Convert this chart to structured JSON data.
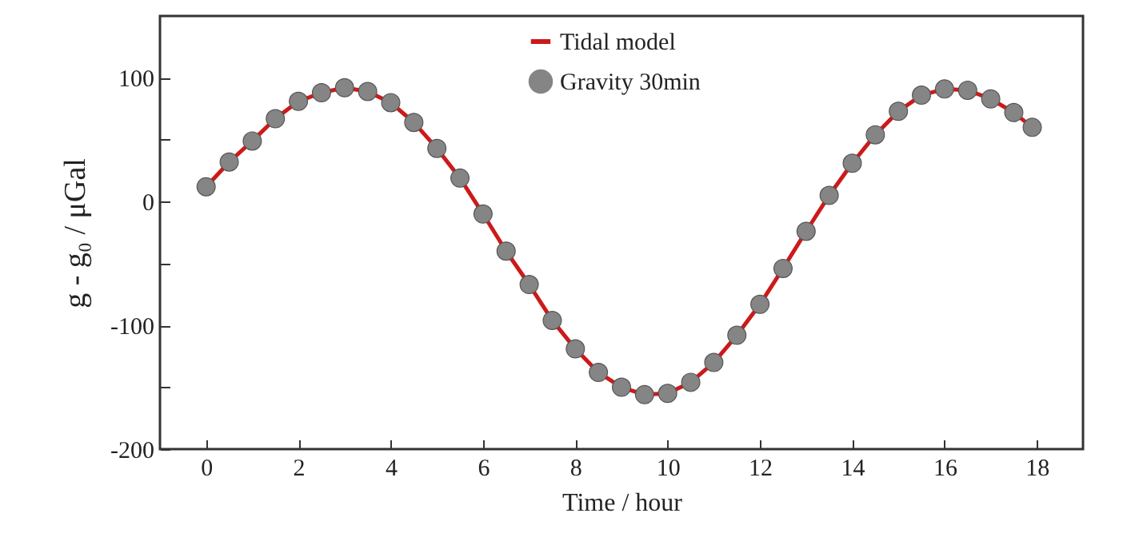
{
  "chart_data": {
    "type": "line",
    "xlabel": "Time / hour",
    "ylabel": "g - g₀  / μGal",
    "xlim": [
      -1,
      19
    ],
    "ylim": [
      -200,
      150
    ],
    "xticks": [
      0,
      2,
      4,
      6,
      8,
      10,
      12,
      14,
      16,
      18
    ],
    "yticks": [
      -200,
      {
        "value": -150,
        "label": null
      },
      -100,
      {
        "value": -50,
        "label": null
      },
      0,
      {
        "value": 50,
        "label": null
      },
      100
    ],
    "grid": false,
    "legend": "top",
    "series": [
      {
        "name": "Tidal model",
        "line_style": "solid",
        "color": "#cc1a1a",
        "x": [
          0,
          0.5,
          1,
          1.5,
          2,
          2.5,
          3,
          3.5,
          4,
          4.5,
          5,
          5.5,
          6,
          6.5,
          7,
          7.5,
          8,
          8.5,
          9,
          9.5,
          10,
          10.5,
          11,
          11.5,
          12,
          12.5,
          13,
          13.5,
          14,
          14.5,
          15,
          15.5,
          16,
          16.5,
          17,
          17.5,
          17.9
        ],
        "values": [
          12,
          32,
          49,
          67,
          81,
          88,
          92,
          89,
          80,
          64,
          43,
          19,
          -10,
          -40,
          -67,
          -96,
          -119,
          -138,
          -150,
          -156,
          -155,
          -146,
          -130,
          -108,
          -83,
          -54,
          -24,
          5,
          31,
          54,
          73,
          86,
          91,
          90,
          83,
          72,
          60
        ]
      },
      {
        "name": "Gravity 30min",
        "type": "scatter",
        "marker": "circle",
        "color": "#858585",
        "x": [
          0,
          0.5,
          1,
          1.5,
          2,
          2.5,
          3,
          3.5,
          4,
          4.5,
          5,
          5.5,
          6,
          6.5,
          7,
          7.5,
          8,
          8.5,
          9,
          9.5,
          10,
          10.5,
          11,
          11.5,
          12,
          12.5,
          13,
          13.5,
          14,
          14.5,
          15,
          15.5,
          16,
          16.5,
          17,
          17.5,
          17.9
        ],
        "values": [
          12,
          32,
          49,
          67,
          81,
          88,
          92,
          89,
          80,
          64,
          43,
          19,
          -10,
          -40,
          -67,
          -96,
          -119,
          -138,
          -150,
          -156,
          -155,
          -146,
          -130,
          -108,
          -83,
          -54,
          -24,
          5,
          31,
          54,
          73,
          86,
          91,
          90,
          83,
          72,
          60
        ]
      }
    ]
  }
}
